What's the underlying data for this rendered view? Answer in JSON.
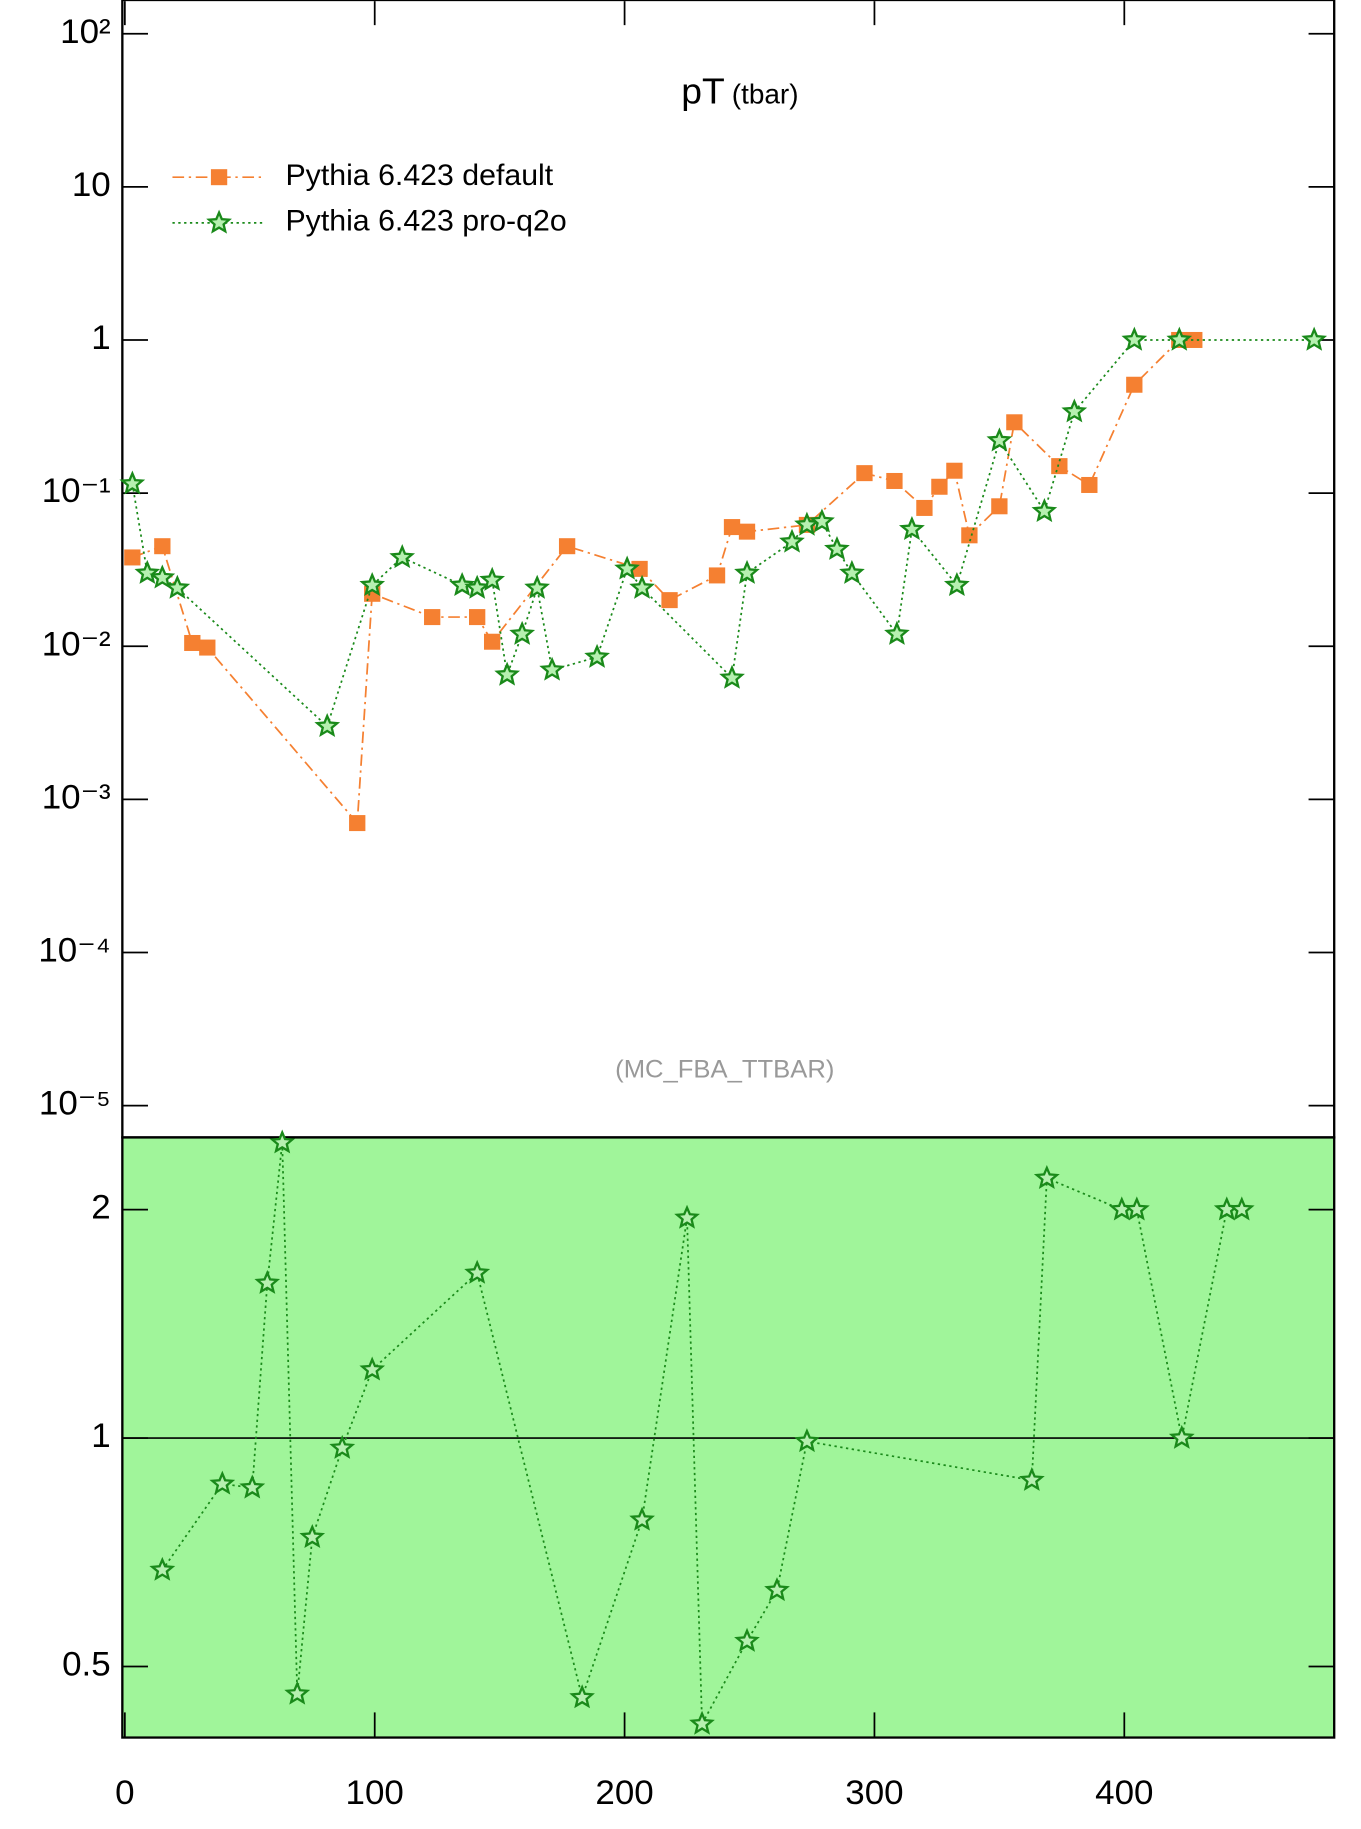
{
  "chart_data": [
    {
      "type": "line",
      "title": "pT",
      "subtitle": "(tbar)",
      "annotation": "(MC_FBA_TTBAR)",
      "log_y": true,
      "legend": "upper left",
      "xlim": [
        -1,
        484
      ],
      "ylim": [
        6.2e-06,
        166
      ],
      "yticks": [
        {
          "value": 1e-05,
          "label": "10⁻⁵"
        },
        {
          "value": 0.0001,
          "label": "10⁻⁴"
        },
        {
          "value": 0.001,
          "label": "10⁻³"
        },
        {
          "value": 0.01,
          "label": "10⁻²"
        },
        {
          "value": 0.1,
          "label": "10⁻¹"
        },
        1,
        10,
        {
          "value": 100,
          "label": "10²"
        }
      ],
      "series": [
        {
          "name": "Pythia 6.423 default",
          "color": "#f58031",
          "marker": "square",
          "x": [
            3,
            15,
            27,
            33,
            93,
            99,
            123,
            141,
            147,
            177,
            206,
            218,
            237,
            243,
            249,
            273,
            296,
            308,
            320,
            326,
            332,
            338,
            350,
            356,
            374,
            386,
            404,
            422,
            428
          ],
          "values": [
            0.038,
            0.045,
            0.0105,
            0.0098,
            0.0007,
            0.022,
            0.0155,
            0.0155,
            0.0107,
            0.045,
            0.032,
            0.02,
            0.029,
            0.06,
            0.056,
            0.062,
            0.135,
            0.12,
            0.08,
            0.11,
            0.14,
            0.053,
            0.082,
            0.29,
            0.15,
            0.113,
            0.51,
            1.0,
            1.0
          ]
        },
        {
          "name": "Pythia 6.423 pro-q2o",
          "color": "#1a8a1a",
          "marker": "star",
          "x": [
            3,
            9,
            15,
            21,
            81,
            99,
            111,
            135,
            141,
            147,
            153,
            159,
            165,
            171,
            189,
            201,
            207,
            243,
            249,
            267,
            273,
            279,
            285,
            291,
            309,
            315,
            333,
            350,
            368,
            380,
            404,
            422,
            476
          ],
          "values": [
            0.115,
            0.03,
            0.028,
            0.024,
            0.003,
            0.025,
            0.038,
            0.025,
            0.024,
            0.027,
            0.0065,
            0.012,
            0.024,
            0.007,
            0.0085,
            0.032,
            0.024,
            0.0062,
            0.03,
            0.048,
            0.062,
            0.065,
            0.043,
            0.03,
            0.012,
            0.058,
            0.025,
            0.22,
            0.076,
            0.34,
            1.0,
            1.0,
            1.0
          ]
        }
      ]
    },
    {
      "type": "scatter",
      "log_y": true,
      "xlim": [
        -1,
        484
      ],
      "ylim": [
        0.403,
        2.49
      ],
      "xticks": [
        0,
        100,
        200,
        300,
        400
      ],
      "yticks": [
        0.5,
        1,
        2
      ],
      "series": [
        {
          "color": "#1a8a1a",
          "x": [
            15,
            39,
            51,
            57,
            63,
            69,
            75,
            87,
            99,
            141,
            183,
            207,
            225,
            231,
            249,
            261,
            273,
            363,
            369,
            399,
            405,
            423,
            441,
            447
          ],
          "values": [
            0.67,
            0.87,
            0.86,
            1.6,
            2.45,
            0.46,
            0.74,
            0.97,
            1.23,
            1.65,
            0.455,
            0.78,
            1.95,
            0.42,
            0.54,
            0.63,
            0.99,
            0.88,
            2.2,
            2.0,
            2.0,
            1.0,
            2.0,
            2.0
          ]
        }
      ]
    }
  ]
}
